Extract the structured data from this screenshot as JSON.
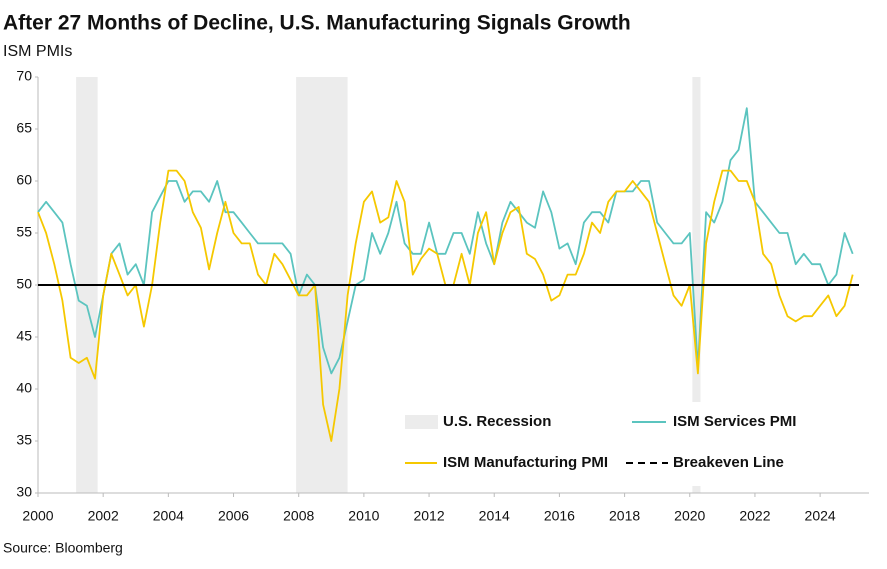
{
  "chart_data": {
    "type": "line",
    "title": "After 27 Months of Decline, U.S. Manufacturing Signals Growth",
    "subtitle": "ISM PMIs",
    "source": "Source: Bloomberg",
    "x": [
      2000,
      2000.25,
      2000.5,
      2000.75,
      2001,
      2001.25,
      2001.5,
      2001.75,
      2002,
      2002.25,
      2002.5,
      2002.75,
      2003,
      2003.25,
      2003.5,
      2003.75,
      2004,
      2004.25,
      2004.5,
      2004.75,
      2005,
      2005.25,
      2005.5,
      2005.75,
      2006,
      2006.25,
      2006.5,
      2006.75,
      2007,
      2007.25,
      2007.5,
      2007.75,
      2008,
      2008.25,
      2008.5,
      2008.75,
      2009,
      2009.25,
      2009.5,
      2009.75,
      2010,
      2010.25,
      2010.5,
      2010.75,
      2011,
      2011.25,
      2011.5,
      2011.75,
      2012,
      2012.25,
      2012.5,
      2012.75,
      2013,
      2013.25,
      2013.5,
      2013.75,
      2014,
      2014.25,
      2014.5,
      2014.75,
      2015,
      2015.25,
      2015.5,
      2015.75,
      2016,
      2016.25,
      2016.5,
      2016.75,
      2017,
      2017.25,
      2017.5,
      2017.75,
      2018,
      2018.25,
      2018.5,
      2018.75,
      2019,
      2019.25,
      2019.5,
      2019.75,
      2020,
      2020.25,
      2020.5,
      2020.75,
      2021,
      2021.25,
      2021.5,
      2021.75,
      2022,
      2022.25,
      2022.5,
      2022.75,
      2023,
      2023.25,
      2023.5,
      2023.75,
      2024,
      2024.25,
      2024.5,
      2024.75,
      2025
    ],
    "series": [
      {
        "name": "ISM Services PMI",
        "color": "#5bc4bf",
        "values": [
          57,
          58,
          57,
          56,
          52,
          48.5,
          48,
          45,
          49,
          53,
          54,
          51,
          52,
          50,
          57,
          58.5,
          60,
          60,
          58,
          59,
          59,
          58,
          60,
          57,
          57,
          56,
          55,
          54,
          54,
          54,
          54,
          53,
          49,
          51,
          50,
          44,
          41.5,
          43,
          46.5,
          50,
          50.5,
          55,
          53,
          55,
          58,
          54,
          53,
          53,
          56,
          53,
          53,
          55,
          55,
          53,
          57,
          54,
          52,
          56,
          58,
          57,
          56,
          55.5,
          59,
          57,
          53.5,
          54,
          52,
          56,
          57,
          57,
          56,
          59,
          59,
          59,
          60,
          60,
          56,
          55,
          54,
          54,
          55,
          42,
          57,
          56,
          58,
          62,
          63,
          67,
          58,
          57,
          56,
          55,
          55,
          52,
          53,
          52,
          52,
          50,
          51,
          55,
          53
        ]
      },
      {
        "name": "ISM Manufacturing PMI",
        "color": "#f5c800",
        "values": [
          57,
          55,
          52,
          48.5,
          43,
          42.5,
          43,
          41,
          49,
          53,
          51,
          49,
          50,
          46,
          50,
          56,
          61,
          61,
          60,
          57,
          55.5,
          51.5,
          55,
          58,
          55,
          54,
          54,
          51,
          50,
          53,
          52,
          50.5,
          49,
          49,
          50,
          38.5,
          35,
          40,
          49,
          54,
          58,
          59,
          56,
          56.5,
          60,
          58,
          51,
          52.5,
          53.5,
          53,
          50,
          50,
          53,
          50,
          55,
          57,
          52,
          55,
          57,
          57.5,
          53,
          52.5,
          51,
          48.5,
          49,
          51,
          51,
          53,
          56,
          55,
          58,
          59,
          59,
          60,
          59,
          58,
          55,
          52,
          49,
          48,
          50,
          41.5,
          54,
          58,
          61,
          61,
          60,
          60,
          58,
          53,
          52,
          49,
          47,
          46.5,
          47,
          47,
          48,
          49,
          47,
          48,
          51
        ]
      }
    ],
    "recession": {
      "name": "U.S. Recession",
      "color": "#ececec",
      "periods": [
        [
          2001.17,
          2001.83
        ],
        [
          2007.92,
          2009.5
        ],
        [
          2020.08,
          2020.33
        ]
      ]
    },
    "breakeven": {
      "name": "Breakeven Line",
      "value": 50
    },
    "xlim": [
      2000,
      2025.5
    ],
    "xticks": [
      2000,
      2002,
      2004,
      2006,
      2008,
      2010,
      2012,
      2014,
      2016,
      2018,
      2020,
      2022,
      2024
    ],
    "ylim": [
      30,
      70
    ],
    "yticks": [
      30,
      35,
      40,
      45,
      50,
      55,
      60,
      65,
      70
    ]
  }
}
